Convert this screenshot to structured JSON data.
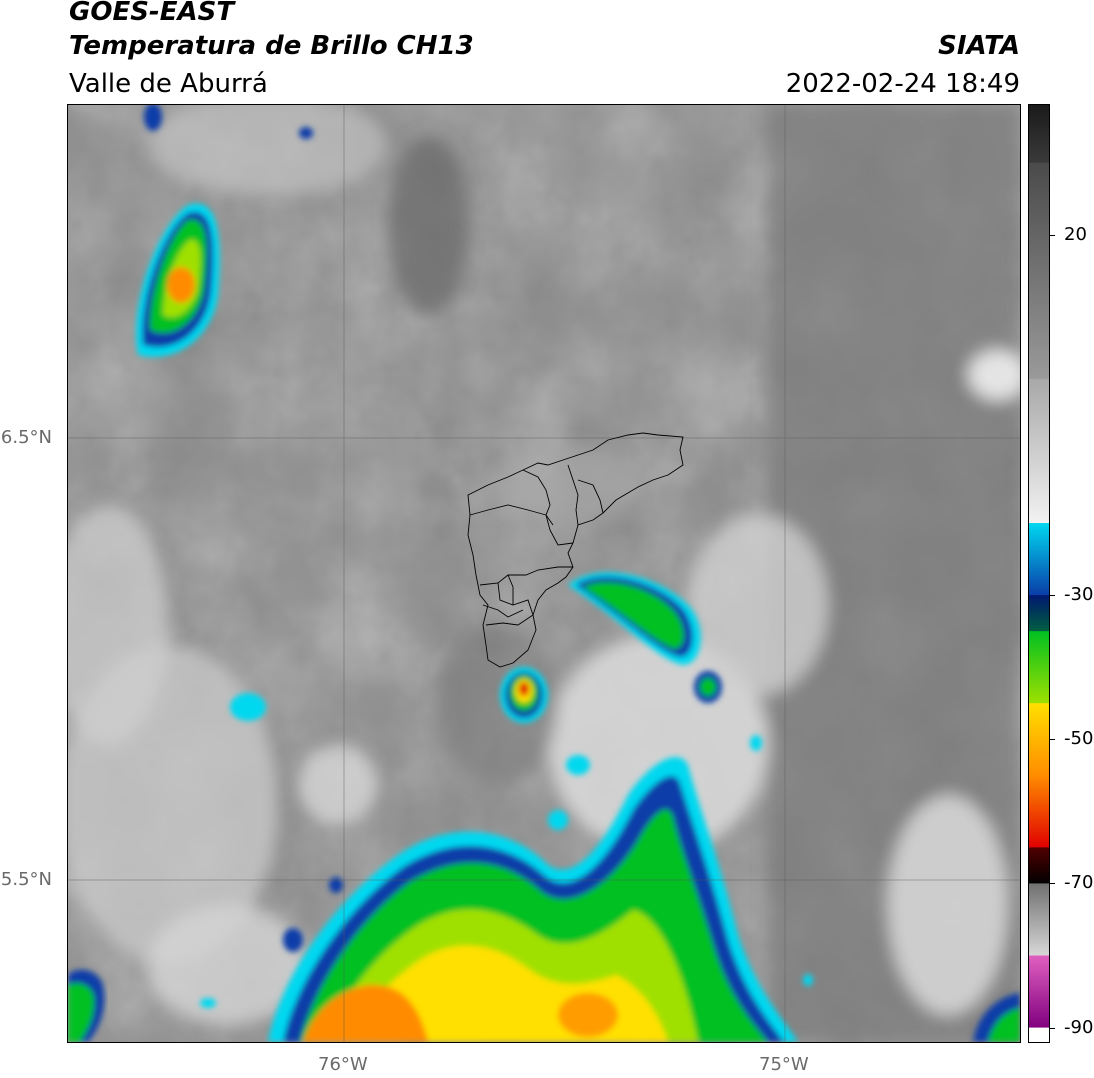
{
  "header": {
    "satellite": "GOES-EAST",
    "product": "Temperatura de Brillo CH13",
    "region": "Valle de Aburrá",
    "brand": "SIATA",
    "datetime": "2022-02-24 18:49"
  },
  "map": {
    "lat_labels": [
      {
        "value": 6.5,
        "text": "6.5°N"
      },
      {
        "value": 5.5,
        "text": "5.5°N"
      }
    ],
    "lon_labels": [
      {
        "value": -76,
        "text": "76°W"
      },
      {
        "value": -75,
        "text": "75°W"
      }
    ],
    "extent": {
      "lon_min": -76.62,
      "lon_max": -74.47,
      "lat_min": 5.12,
      "lat_max": 7.25
    }
  },
  "colorbar": {
    "ticks": [
      {
        "value": 20,
        "text": "20"
      },
      {
        "value": -30,
        "text": "-30"
      },
      {
        "value": -50,
        "text": "-50"
      },
      {
        "value": -70,
        "text": "-70"
      },
      {
        "value": -90,
        "text": "-90"
      }
    ],
    "range": [
      -92,
      38
    ],
    "colors": {
      "warm_dark": "#1a1a1a",
      "warm_mid": "#808080",
      "warm_light": "#f2f2f2",
      "cyan": "#00d8f0",
      "blue": "#0a3ca8",
      "navy": "#001870",
      "green": "#00c020",
      "lime": "#a0e000",
      "yellow": "#ffe000",
      "orange": "#ff8c00",
      "red": "#e00000",
      "maroon": "#500000",
      "black": "#000000",
      "pink": "#e060c0",
      "purple": "#800080"
    }
  }
}
